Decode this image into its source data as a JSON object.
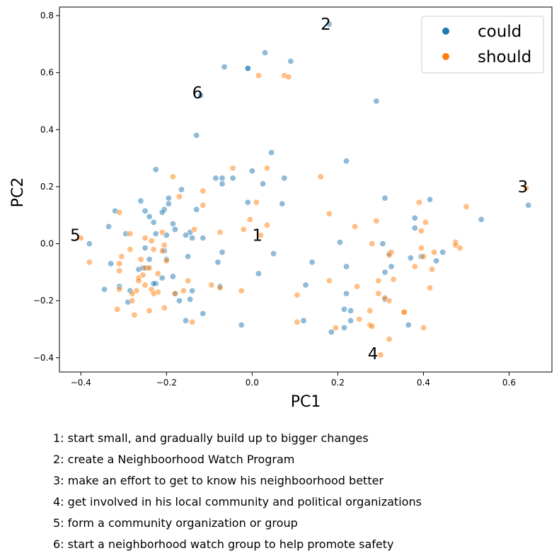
{
  "chart_data": {
    "type": "scatter",
    "xlabel": "PC1",
    "ylabel": "PC2",
    "xlim": [
      -0.45,
      0.7
    ],
    "ylim": [
      -0.45,
      0.83
    ],
    "x_ticks": [
      -0.4,
      -0.2,
      0.0,
      0.2,
      0.4,
      0.6
    ],
    "x_tick_labels": [
      "−0.4",
      "−0.2",
      "0.0",
      "0.2",
      "0.4",
      "0.6"
    ],
    "y_ticks": [
      -0.4,
      -0.2,
      0.0,
      0.2,
      0.4,
      0.6,
      0.8
    ],
    "y_tick_labels": [
      "−0.4",
      "−0.2",
      "0.0",
      "0.2",
      "0.4",
      "0.6",
      "0.8"
    ],
    "grid": false,
    "legend_position": "top-right",
    "series": [
      {
        "name": "could",
        "color": "#1f77b4",
        "points": [
          [
            0.18,
            0.77
          ],
          [
            0.03,
            0.67
          ],
          [
            0.09,
            0.64
          ],
          [
            -0.065,
            0.62
          ],
          [
            -0.01,
            0.615
          ],
          [
            -0.01,
            0.615
          ],
          [
            -0.12,
            0.52
          ],
          [
            0.29,
            0.5
          ],
          [
            -0.13,
            0.38
          ],
          [
            0.045,
            0.32
          ],
          [
            0.22,
            0.29
          ],
          [
            -0.225,
            0.26
          ],
          [
            0.0,
            0.255
          ],
          [
            -0.085,
            0.23
          ],
          [
            -0.07,
            0.23
          ],
          [
            -0.045,
            0.23
          ],
          [
            0.075,
            0.23
          ],
          [
            -0.07,
            0.21
          ],
          [
            0.025,
            0.21
          ],
          [
            -0.165,
            0.19
          ],
          [
            -0.195,
            0.16
          ],
          [
            0.31,
            0.16
          ],
          [
            0.415,
            0.155
          ],
          [
            -0.26,
            0.15
          ],
          [
            -0.01,
            0.145
          ],
          [
            -0.195,
            0.14
          ],
          [
            0.07,
            0.14
          ],
          [
            -0.205,
            0.12
          ],
          [
            -0.13,
            0.12
          ],
          [
            -0.32,
            0.115
          ],
          [
            -0.25,
            0.115
          ],
          [
            -0.21,
            0.11
          ],
          [
            -0.24,
            0.095
          ],
          [
            0.38,
            0.09
          ],
          [
            0.535,
            0.085
          ],
          [
            -0.23,
            0.075
          ],
          [
            -0.185,
            0.07
          ],
          [
            -0.335,
            0.06
          ],
          [
            0.38,
            0.055
          ],
          [
            -0.18,
            0.05
          ],
          [
            -0.145,
            0.04
          ],
          [
            -0.295,
            0.035
          ],
          [
            -0.225,
            0.035
          ],
          [
            -0.155,
            0.03
          ],
          [
            -0.2,
            0.03
          ],
          [
            0.305,
            0.0
          ],
          [
            -0.115,
            0.02
          ],
          [
            -0.14,
            0.02
          ],
          [
            0.205,
            0.005
          ],
          [
            -0.38,
            0.0
          ],
          [
            -0.25,
            -0.015
          ],
          [
            -0.205,
            -0.025
          ],
          [
            -0.07,
            -0.03
          ],
          [
            0.05,
            -0.035
          ],
          [
            0.445,
            -0.03
          ],
          [
            0.32,
            -0.035
          ],
          [
            -0.15,
            -0.045
          ],
          [
            0.395,
            -0.045
          ],
          [
            -0.2,
            -0.055
          ],
          [
            -0.24,
            -0.055
          ],
          [
            0.37,
            -0.05
          ],
          [
            0.43,
            -0.06
          ],
          [
            0.14,
            -0.065
          ],
          [
            -0.33,
            -0.07
          ],
          [
            -0.08,
            -0.065
          ],
          [
            0.325,
            -0.08
          ],
          [
            0.22,
            -0.08
          ],
          [
            -0.245,
            -0.085
          ],
          [
            -0.265,
            -0.09
          ],
          [
            -0.255,
            -0.085
          ],
          [
            0.31,
            -0.1
          ],
          [
            -0.185,
            -0.115
          ],
          [
            0.015,
            -0.105
          ],
          [
            -0.21,
            -0.12
          ],
          [
            -0.225,
            -0.14
          ],
          [
            -0.23,
            -0.14
          ],
          [
            -0.31,
            -0.15
          ],
          [
            -0.345,
            -0.16
          ],
          [
            -0.285,
            -0.165
          ],
          [
            -0.14,
            -0.165
          ],
          [
            -0.18,
            -0.175
          ],
          [
            0.125,
            -0.145
          ],
          [
            -0.075,
            -0.15
          ],
          [
            0.22,
            -0.175
          ],
          [
            -0.17,
            -0.2
          ],
          [
            -0.145,
            -0.195
          ],
          [
            -0.29,
            -0.205
          ],
          [
            0.31,
            -0.195
          ],
          [
            0.215,
            -0.23
          ],
          [
            0.23,
            -0.235
          ],
          [
            -0.115,
            -0.245
          ],
          [
            -0.155,
            -0.27
          ],
          [
            0.23,
            -0.27
          ],
          [
            0.12,
            -0.27
          ],
          [
            0.365,
            -0.285
          ],
          [
            -0.025,
            -0.285
          ],
          [
            0.215,
            -0.295
          ],
          [
            0.185,
            -0.31
          ],
          [
            0.645,
            0.135
          ]
        ]
      },
      {
        "name": "should",
        "color": "#ff7f0e",
        "points": [
          [
            0.015,
            0.59
          ],
          [
            0.075,
            0.59
          ],
          [
            0.085,
            0.585
          ],
          [
            -0.045,
            0.265
          ],
          [
            0.035,
            0.265
          ],
          [
            -0.185,
            0.235
          ],
          [
            0.16,
            0.235
          ],
          [
            0.64,
            0.195
          ],
          [
            -0.115,
            0.185
          ],
          [
            -0.17,
            0.165
          ],
          [
            0.01,
            0.145
          ],
          [
            0.39,
            0.145
          ],
          [
            -0.115,
            0.135
          ],
          [
            0.5,
            0.13
          ],
          [
            -0.31,
            0.11
          ],
          [
            0.18,
            0.105
          ],
          [
            -0.005,
            0.085
          ],
          [
            0.29,
            0.08
          ],
          [
            0.405,
            0.075
          ],
          [
            0.035,
            0.065
          ],
          [
            0.24,
            0.06
          ],
          [
            -0.02,
            0.05
          ],
          [
            -0.135,
            0.05
          ],
          [
            0.395,
            0.045
          ],
          [
            -0.075,
            0.04
          ],
          [
            -0.21,
            0.04
          ],
          [
            -0.285,
            0.035
          ],
          [
            0.02,
            0.03
          ],
          [
            -0.25,
            0.02
          ],
          [
            -0.235,
            0.01
          ],
          [
            0.475,
            0.005
          ],
          [
            0.28,
            0.0
          ],
          [
            -0.205,
            -0.005
          ],
          [
            0.475,
            -0.005
          ],
          [
            0.395,
            -0.015
          ],
          [
            0.485,
            -0.015
          ],
          [
            -0.285,
            -0.02
          ],
          [
            -0.23,
            -0.02
          ],
          [
            -0.21,
            -0.025
          ],
          [
            0.325,
            -0.03
          ],
          [
            0.425,
            -0.03
          ],
          [
            0.32,
            -0.04
          ],
          [
            -0.305,
            -0.045
          ],
          [
            -0.26,
            -0.055
          ],
          [
            0.4,
            -0.045
          ],
          [
            -0.2,
            -0.06
          ],
          [
            -0.38,
            -0.065
          ],
          [
            -0.31,
            -0.07
          ],
          [
            0.38,
            -0.08
          ],
          [
            -0.25,
            -0.085
          ],
          [
            -0.24,
            -0.085
          ],
          [
            0.42,
            -0.09
          ],
          [
            -0.31,
            -0.095
          ],
          [
            -0.22,
            -0.105
          ],
          [
            -0.255,
            -0.11
          ],
          [
            -0.265,
            -0.12
          ],
          [
            -0.265,
            -0.13
          ],
          [
            -0.15,
            -0.13
          ],
          [
            0.18,
            -0.13
          ],
          [
            0.295,
            -0.13
          ],
          [
            0.33,
            -0.125
          ],
          [
            -0.25,
            -0.145
          ],
          [
            -0.095,
            -0.145
          ],
          [
            0.245,
            -0.15
          ],
          [
            -0.075,
            -0.155
          ],
          [
            0.415,
            -0.155
          ],
          [
            -0.31,
            -0.16
          ],
          [
            -0.235,
            -0.16
          ],
          [
            -0.27,
            -0.165
          ],
          [
            -0.16,
            -0.165
          ],
          [
            -0.025,
            -0.165
          ],
          [
            -0.22,
            -0.17
          ],
          [
            -0.28,
            -0.175
          ],
          [
            -0.23,
            -0.175
          ],
          [
            -0.18,
            -0.175
          ],
          [
            0.105,
            -0.18
          ],
          [
            0.295,
            -0.175
          ],
          [
            0.32,
            -0.2
          ],
          [
            -0.28,
            -0.2
          ],
          [
            0.31,
            -0.19
          ],
          [
            -0.205,
            -0.225
          ],
          [
            0.355,
            -0.24
          ],
          [
            -0.315,
            -0.23
          ],
          [
            -0.24,
            -0.235
          ],
          [
            0.355,
            -0.24
          ],
          [
            0.275,
            -0.235
          ],
          [
            -0.275,
            -0.25
          ],
          [
            0.25,
            -0.265
          ],
          [
            -0.14,
            -0.275
          ],
          [
            0.105,
            -0.275
          ],
          [
            0.275,
            -0.285
          ],
          [
            0.28,
            -0.29
          ],
          [
            0.195,
            -0.295
          ],
          [
            0.4,
            -0.295
          ],
          [
            0.32,
            -0.335
          ],
          [
            0.3,
            -0.39
          ],
          [
            -0.4,
            0.02
          ]
        ]
      }
    ],
    "annotations": [
      {
        "label": "1",
        "x": 0.0,
        "y": 0.03
      },
      {
        "label": "2",
        "x": 0.16,
        "y": 0.77
      },
      {
        "label": "3",
        "x": 0.62,
        "y": 0.2
      },
      {
        "label": "4",
        "x": 0.27,
        "y": -0.385
      },
      {
        "label": "5",
        "x": -0.425,
        "y": 0.03
      },
      {
        "label": "6",
        "x": -0.14,
        "y": 0.53
      }
    ]
  },
  "captions": [
    "1: start small, and gradually build up to bigger changes",
    "2: create a Neighboorhood Watch Program",
    "3: make an effort to get to know his neighboorhood better",
    "4: get involved in his local community and political organizations",
    "5: form a community organization or group",
    "6: start a neighborhood watch group to help promote safety"
  ]
}
